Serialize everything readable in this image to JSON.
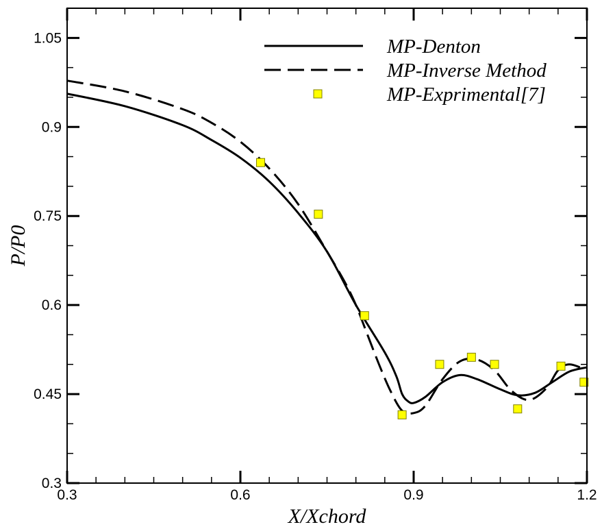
{
  "chart_data": {
    "type": "line",
    "xlabel": "X/Xchord",
    "ylabel": "P/P0",
    "xlim": [
      0.3,
      1.2
    ],
    "ylim": [
      0.3,
      1.1
    ],
    "x_ticks": [
      "0.3",
      "0.6",
      "0.9",
      "1.2"
    ],
    "y_ticks": [
      "0.3",
      "0.45",
      "0.6",
      "0.75",
      "0.9",
      "1.05"
    ],
    "x_tick_values": [
      0.3,
      0.6,
      0.9,
      1.2
    ],
    "y_tick_values": [
      0.3,
      0.45,
      0.6,
      0.75,
      0.9,
      1.05
    ],
    "grid": false,
    "legend_position": "top-right",
    "series": [
      {
        "name": "MP-Denton",
        "style": "solid",
        "color": "#000000",
        "x": [
          0.3,
          0.4,
          0.5,
          0.55,
          0.6,
          0.65,
          0.7,
          0.75,
          0.8,
          0.85,
          0.87,
          0.88,
          0.89,
          0.9,
          0.92,
          0.95,
          0.98,
          1.01,
          1.05,
          1.08,
          1.11,
          1.14,
          1.17,
          1.2
        ],
        "y": [
          0.956,
          0.935,
          0.903,
          0.878,
          0.848,
          0.808,
          0.755,
          0.69,
          0.6,
          0.52,
          0.48,
          0.45,
          0.438,
          0.435,
          0.445,
          0.47,
          0.482,
          0.475,
          0.458,
          0.448,
          0.452,
          0.47,
          0.488,
          0.495
        ]
      },
      {
        "name": "MP-Inverse Method",
        "style": "dashed",
        "color": "#000000",
        "x": [
          0.3,
          0.4,
          0.5,
          0.55,
          0.6,
          0.65,
          0.7,
          0.75,
          0.78,
          0.8,
          0.82,
          0.84,
          0.86,
          0.88,
          0.9,
          0.92,
          0.95,
          0.98,
          1.01,
          1.04,
          1.07,
          1.1,
          1.13,
          1.15,
          1.17,
          1.2
        ],
        "y": [
          0.978,
          0.96,
          0.93,
          0.907,
          0.875,
          0.83,
          0.77,
          0.69,
          0.64,
          0.6,
          0.55,
          0.5,
          0.455,
          0.422,
          0.418,
          0.43,
          0.475,
          0.505,
          0.508,
          0.49,
          0.455,
          0.44,
          0.46,
          0.49,
          0.5,
          0.49
        ]
      },
      {
        "name": "MP-Exprimental[7]",
        "style": "markers",
        "marker_color": "#ffff00",
        "x": [
          0.635,
          0.735,
          0.815,
          0.88,
          0.945,
          1.0,
          1.04,
          1.08,
          1.155,
          1.195
        ],
        "y": [
          0.84,
          0.753,
          0.582,
          0.415,
          0.5,
          0.512,
          0.5,
          0.425,
          0.497,
          0.47
        ]
      }
    ]
  }
}
